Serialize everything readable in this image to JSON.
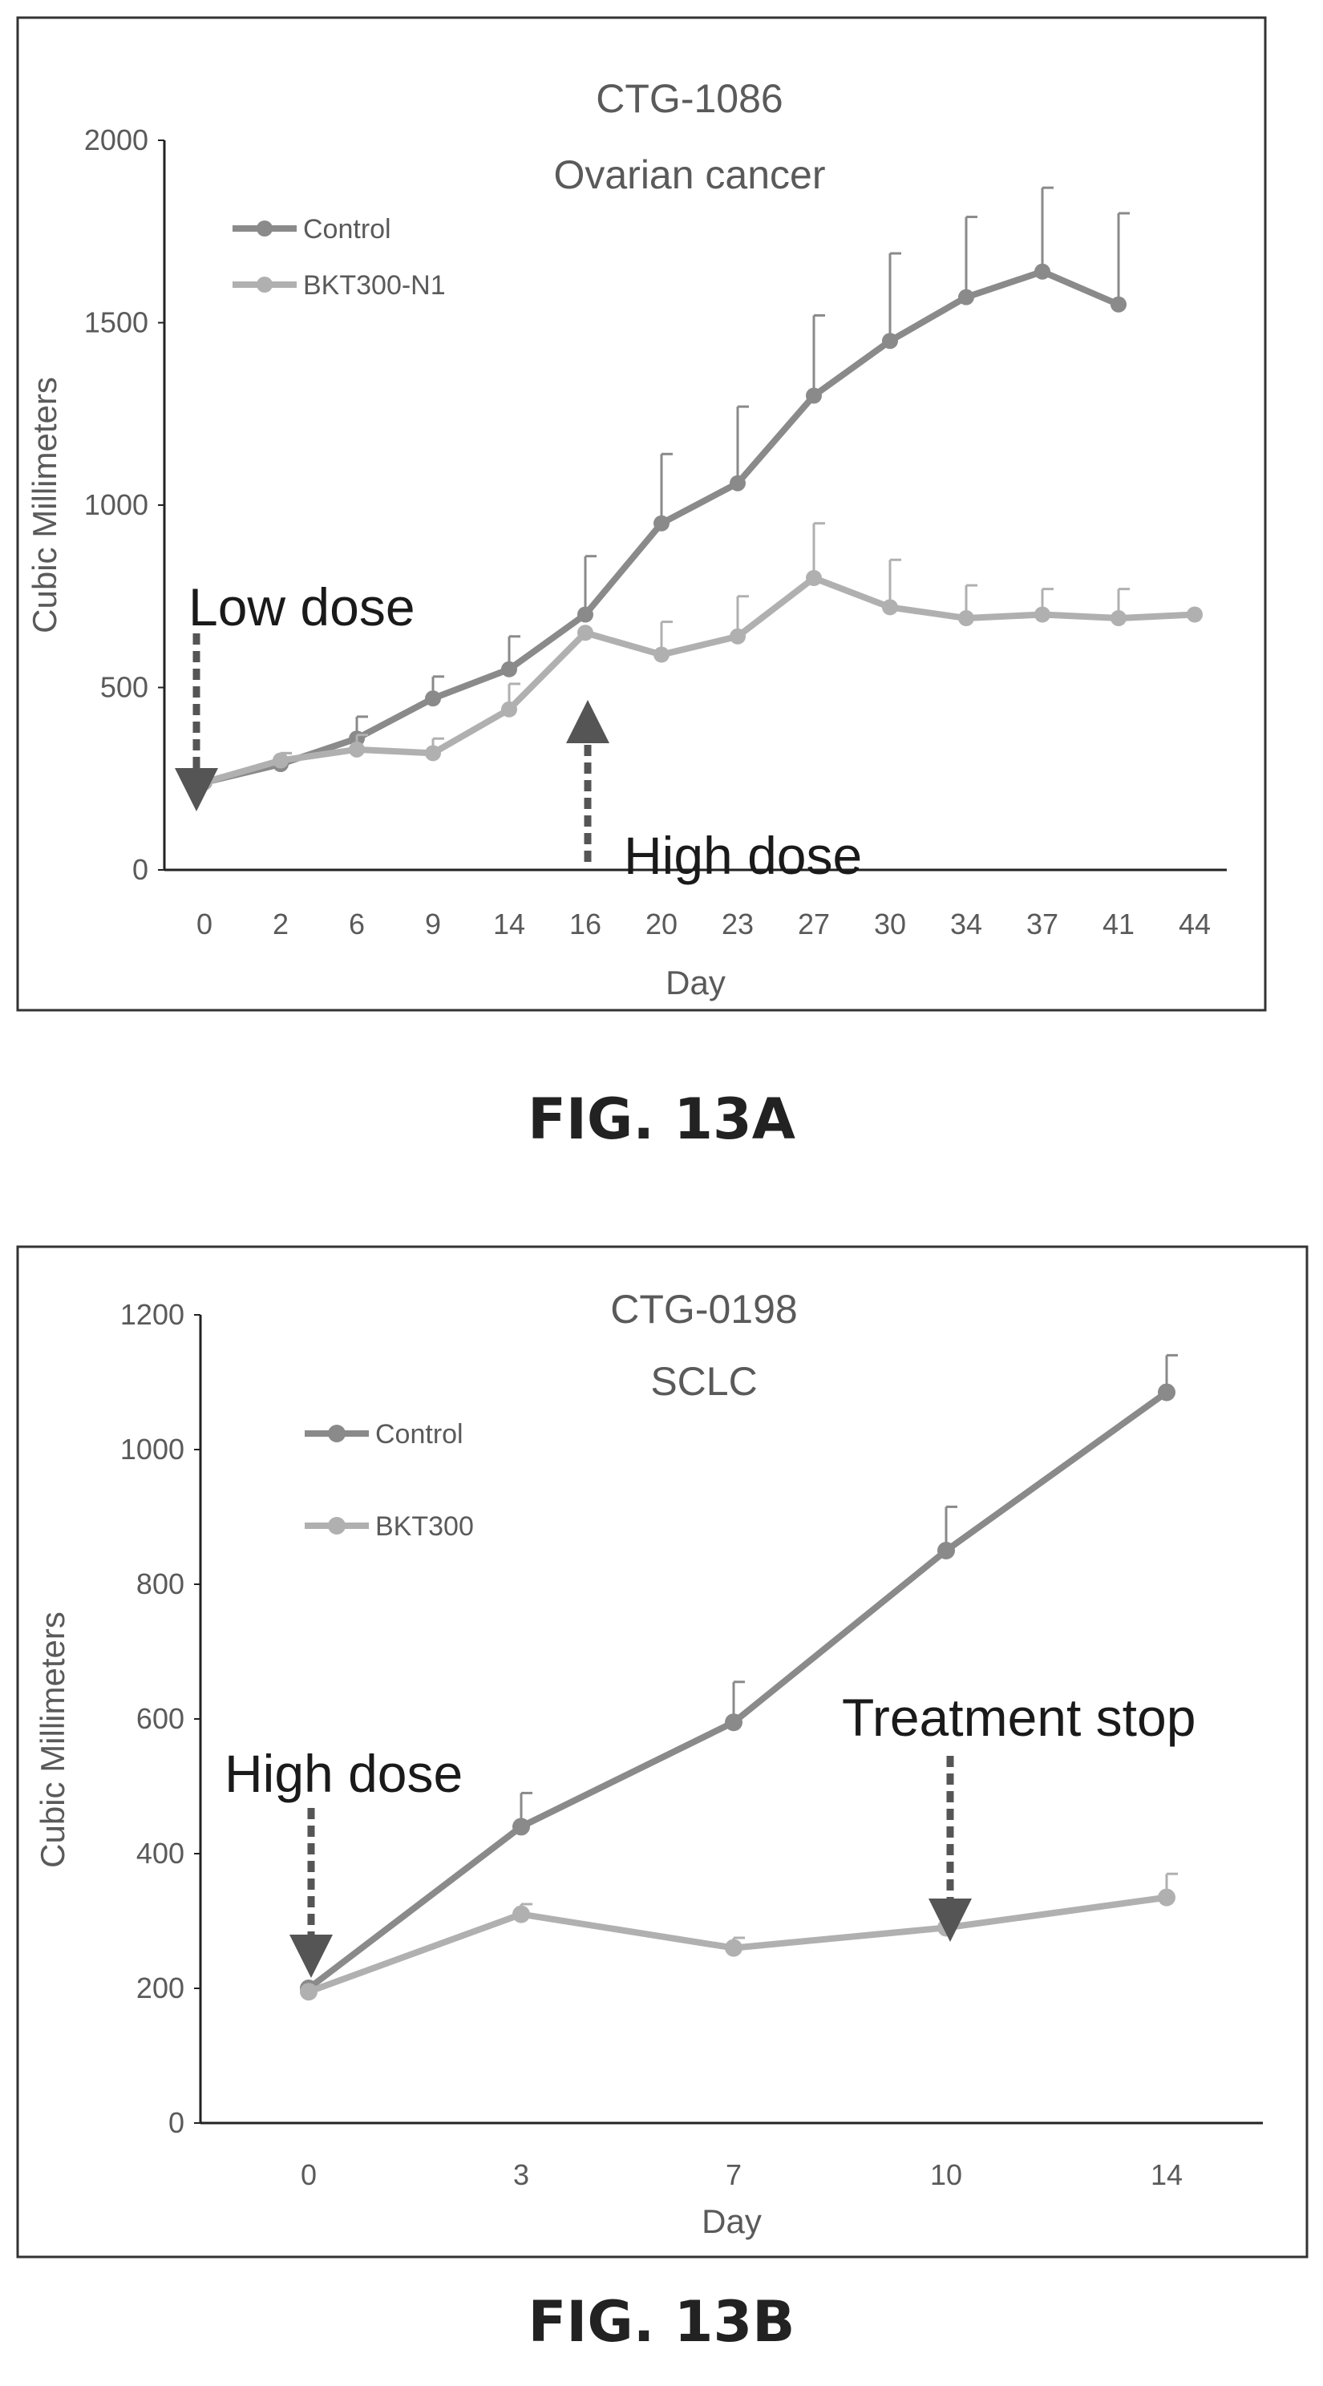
{
  "chart_data": [
    {
      "type": "line",
      "title": "CTG-1086",
      "subtitle": "Ovarian cancer",
      "xlabel": "Day",
      "ylabel": "Cubic Millimeters",
      "ylim": [
        0,
        2000
      ],
      "yticks": [
        "0",
        "500",
        "1000",
        "1500",
        "2000"
      ],
      "categories": [
        "0",
        "2",
        "6",
        "9",
        "14",
        "16",
        "20",
        "23",
        "27",
        "30",
        "34",
        "37",
        "41",
        "44"
      ],
      "legend_position": "top-left",
      "grid": false,
      "series": [
        {
          "name": "Control",
          "values": [
            240,
            290,
            360,
            470,
            550,
            700,
            950,
            1060,
            1300,
            1450,
            1570,
            1640,
            1550,
            null
          ],
          "errors": [
            0,
            30,
            60,
            60,
            90,
            160,
            190,
            210,
            220,
            240,
            220,
            230,
            250,
            null
          ]
        },
        {
          "name": "BKT300-N1",
          "values": [
            240,
            300,
            330,
            320,
            440,
            650,
            590,
            640,
            800,
            720,
            690,
            700,
            690,
            700
          ],
          "errors": [
            0,
            20,
            40,
            40,
            70,
            0,
            90,
            110,
            150,
            130,
            90,
            70,
            80,
            0
          ]
        }
      ],
      "annotations": [
        {
          "text": "Low dose",
          "x": "0",
          "arrow": "down"
        },
        {
          "text": "High dose",
          "x": "16",
          "arrow": "up"
        }
      ],
      "caption": "FIG. 13A"
    },
    {
      "type": "line",
      "title": "CTG-0198",
      "subtitle": "SCLC",
      "xlabel": "Day",
      "ylabel": "Cubic Millimeters",
      "ylim": [
        0,
        1200
      ],
      "yticks": [
        "0",
        "200",
        "400",
        "600",
        "800",
        "1000",
        "1200"
      ],
      "categories": [
        "0",
        "3",
        "7",
        "10",
        "14"
      ],
      "legend_position": "top-left",
      "grid": false,
      "series": [
        {
          "name": "Control",
          "values": [
            200,
            440,
            595,
            850,
            1085
          ],
          "errors": [
            0,
            50,
            60,
            65,
            55
          ]
        },
        {
          "name": "BKT300",
          "values": [
            195,
            310,
            260,
            290,
            335
          ],
          "errors": [
            0,
            15,
            15,
            0,
            35
          ]
        }
      ],
      "annotations": [
        {
          "text": "High dose",
          "x": "0",
          "arrow": "down"
        },
        {
          "text": "Treatment stop",
          "x": "10",
          "arrow": "down"
        }
      ],
      "caption": "FIG. 13B"
    }
  ],
  "colors": {
    "control": "#8a8a8a",
    "treatment": "#b0b0b0",
    "axis": "#222222",
    "frame": "#333333",
    "label": "#5a5a5a",
    "annotation": "#1a1a1a",
    "arrow": "#555555"
  }
}
